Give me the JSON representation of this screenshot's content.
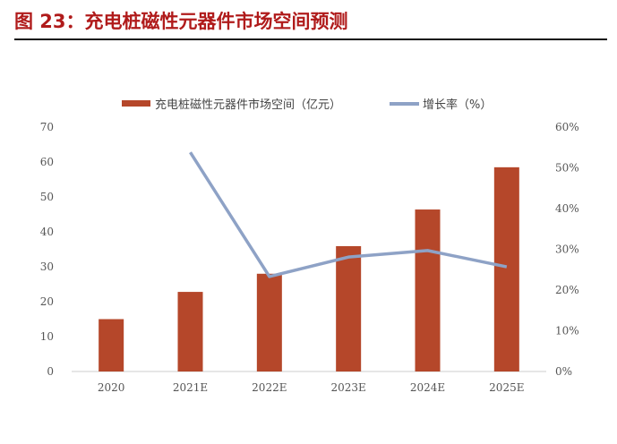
{
  "title": "图 23：充电桩磁性元器件市场空间预测",
  "chart_data": {
    "type": "bar",
    "title": "",
    "categories": [
      "2020",
      "2021E",
      "2022E",
      "2023E",
      "2024E",
      "2025E"
    ],
    "series": [
      {
        "name": "充电桩磁性元器件市场空间（亿元）",
        "type": "bar",
        "axis": "left",
        "color": "#b5472a",
        "values": [
          15,
          22.8,
          28,
          35.9,
          46.4,
          58.5
        ]
      },
      {
        "name": "增长率（%）",
        "type": "line",
        "axis": "right",
        "color": "#8ea2c6",
        "values": [
          null,
          53.8,
          23.3,
          28.1,
          29.7,
          25.7
        ]
      }
    ],
    "y_left": {
      "range": [
        0,
        70
      ],
      "ticks": [
        "0",
        "10",
        "20",
        "30",
        "40",
        "50",
        "60",
        "70"
      ]
    },
    "y_right": {
      "range": [
        0,
        60
      ],
      "ticks": [
        "0%",
        "10%",
        "20%",
        "30%",
        "40%",
        "50%",
        "60%"
      ]
    },
    "grid": false,
    "legend_placement": "top"
  }
}
